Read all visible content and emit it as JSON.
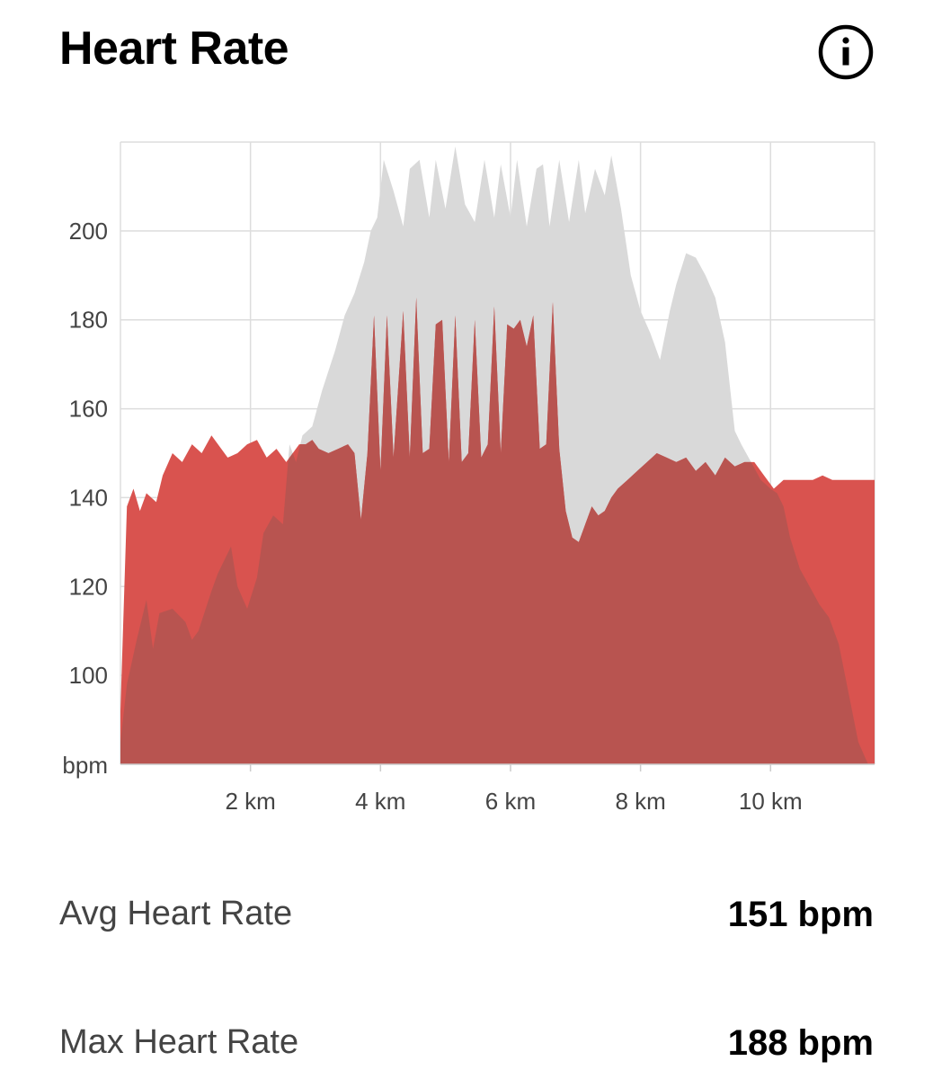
{
  "header": {
    "title": "Heart Rate",
    "info_icon": "info-icon"
  },
  "colors": {
    "current_series": "#d9534f",
    "comparison_series": "#d9d9d9",
    "overlap": "#b85450",
    "grid": "#dddddd"
  },
  "chart_data": {
    "type": "area",
    "title": "",
    "xlabel": "",
    "ylabel": "bpm",
    "xlim": [
      0,
      11.6
    ],
    "ylim": [
      80,
      220
    ],
    "y_ticks": [
      100,
      120,
      140,
      160,
      180,
      200
    ],
    "x_ticks": [
      2,
      4,
      6,
      8,
      10
    ],
    "x_tick_labels": [
      "2 km",
      "4 km",
      "6 km",
      "8 km",
      "10 km"
    ],
    "x_unit": "km",
    "y_unit": "bpm",
    "grid": true,
    "series": [
      {
        "key": "comparison",
        "color": "#d9d9d9",
        "x": [
          0,
          0.1,
          0.25,
          0.4,
          0.5,
          0.6,
          0.8,
          1.0,
          1.1,
          1.2,
          1.4,
          1.5,
          1.7,
          1.8,
          1.95,
          2.1,
          2.2,
          2.35,
          2.5,
          2.6,
          2.7,
          2.8,
          2.95,
          3.1,
          3.3,
          3.45,
          3.6,
          3.75,
          3.85,
          3.95,
          4.05,
          4.2,
          4.35,
          4.45,
          4.6,
          4.75,
          4.85,
          5.0,
          5.15,
          5.3,
          5.45,
          5.6,
          5.75,
          5.85,
          6.0,
          6.1,
          6.25,
          6.4,
          6.5,
          6.6,
          6.75,
          6.9,
          7.05,
          7.15,
          7.3,
          7.45,
          7.55,
          7.7,
          7.85,
          8.0,
          8.15,
          8.3,
          8.45,
          8.55,
          8.7,
          8.85,
          9.0,
          9.15,
          9.3,
          9.45,
          9.55,
          9.7,
          9.85,
          10.0,
          10.1,
          10.2,
          10.3,
          10.45,
          10.6,
          10.75,
          10.9,
          11.05,
          11.2,
          11.35,
          11.5,
          11.6
        ],
        "values": [
          85,
          98,
          108,
          117,
          106,
          114,
          115,
          112,
          108,
          110,
          119,
          123,
          129,
          120,
          115,
          122,
          132,
          136,
          134,
          152,
          148,
          154,
          156,
          164,
          173,
          181,
          186,
          193,
          200,
          203,
          216,
          209,
          201,
          214,
          216,
          203,
          216,
          205,
          219,
          206,
          202,
          216,
          203,
          215,
          203,
          216,
          201,
          214,
          215,
          201,
          216,
          202,
          216,
          204,
          214,
          208,
          217,
          205,
          190,
          182,
          177,
          171,
          182,
          188,
          195,
          194,
          190,
          185,
          175,
          155,
          152,
          148,
          144,
          142,
          141,
          138,
          131,
          124,
          120,
          116,
          113,
          107,
          96,
          85,
          80,
          80
        ]
      },
      {
        "key": "current",
        "color": "#d9534f",
        "x": [
          0,
          0.1,
          0.2,
          0.3,
          0.4,
          0.55,
          0.65,
          0.8,
          0.95,
          1.1,
          1.25,
          1.4,
          1.5,
          1.65,
          1.8,
          1.95,
          2.1,
          2.25,
          2.4,
          2.55,
          2.65,
          2.75,
          2.85,
          2.95,
          3.05,
          3.2,
          3.35,
          3.5,
          3.6,
          3.7,
          3.8,
          3.9,
          4.0,
          4.1,
          4.2,
          4.35,
          4.45,
          4.55,
          4.65,
          4.75,
          4.85,
          4.95,
          5.05,
          5.15,
          5.25,
          5.35,
          5.45,
          5.55,
          5.65,
          5.75,
          5.85,
          5.95,
          6.05,
          6.15,
          6.25,
          6.35,
          6.45,
          6.55,
          6.65,
          6.75,
          6.85,
          6.95,
          7.05,
          7.15,
          7.25,
          7.35,
          7.45,
          7.55,
          7.65,
          7.8,
          7.95,
          8.1,
          8.25,
          8.4,
          8.55,
          8.7,
          8.85,
          9.0,
          9.15,
          9.3,
          9.45,
          9.6,
          9.75,
          9.9,
          10.05,
          10.2,
          10.35,
          10.5,
          10.65,
          10.8,
          10.95,
          11.1,
          11.25,
          11.4,
          11.6
        ],
        "values": [
          92,
          138,
          142,
          137,
          141,
          139,
          145,
          150,
          148,
          152,
          150,
          154,
          152,
          149,
          150,
          152,
          153,
          149,
          151,
          148,
          150,
          152,
          152,
          153,
          151,
          150,
          151,
          152,
          150,
          135,
          150,
          181,
          146,
          181,
          149,
          182,
          149,
          185,
          150,
          151,
          179,
          180,
          148,
          181,
          148,
          150,
          180,
          149,
          152,
          183,
          150,
          179,
          178,
          180,
          174,
          181,
          151,
          152,
          184,
          151,
          137,
          131,
          130,
          134,
          138,
          136,
          137,
          140,
          142,
          144,
          146,
          148,
          150,
          149,
          148,
          149,
          146,
          148,
          145,
          149,
          147,
          148,
          148,
          145,
          142,
          144,
          144,
          144,
          144,
          145,
          144,
          144,
          144,
          144,
          144
        ]
      }
    ]
  },
  "stats": {
    "avg_label": "Avg Heart Rate",
    "avg_value": "151 bpm",
    "max_label": "Max Heart Rate",
    "max_value": "188 bpm"
  }
}
